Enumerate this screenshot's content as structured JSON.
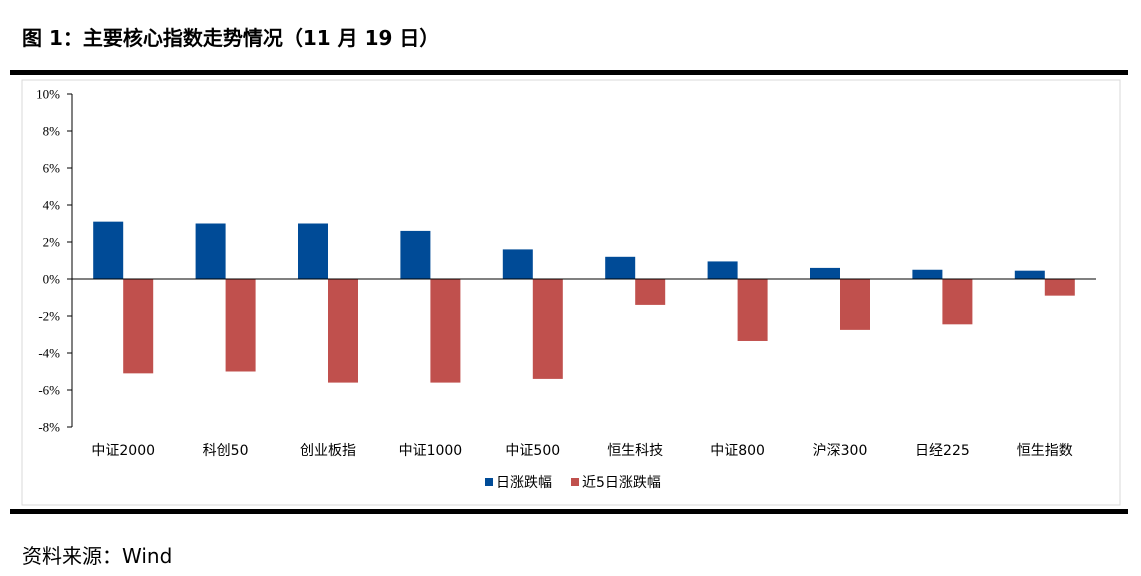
{
  "header": {
    "title": "图 1：主要核心指数走势情况（11 月 19 日）"
  },
  "footer": {
    "source": "资料来源：Wind"
  },
  "colors": {
    "series1": "#004B97",
    "series2": "#C0504D"
  },
  "chart_data": {
    "type": "bar",
    "categories": [
      "中证2000",
      "科创50",
      "创业板指",
      "中证1000",
      "中证500",
      "恒生科技",
      "中证800",
      "沪深300",
      "日经225",
      "恒生指数"
    ],
    "series": [
      {
        "name": "日涨跌幅",
        "values": [
          3.1,
          3.0,
          3.0,
          2.6,
          1.6,
          1.2,
          0.95,
          0.6,
          0.5,
          0.45
        ]
      },
      {
        "name": "近5日涨跌幅",
        "values": [
          -5.1,
          -5.0,
          -5.6,
          -5.6,
          -5.4,
          -1.4,
          -3.35,
          -2.75,
          -2.45,
          -0.9
        ]
      }
    ],
    "ylim": [
      -8,
      10
    ],
    "yticks": [
      -8,
      -6,
      -4,
      -2,
      0,
      2,
      4,
      6,
      8,
      10
    ],
    "ytick_labels": [
      "-8%",
      "-6%",
      "-4%",
      "-2%",
      "0%",
      "2%",
      "4%",
      "6%",
      "8%",
      "10%"
    ],
    "legend_position": "bottom",
    "grid": false
  }
}
